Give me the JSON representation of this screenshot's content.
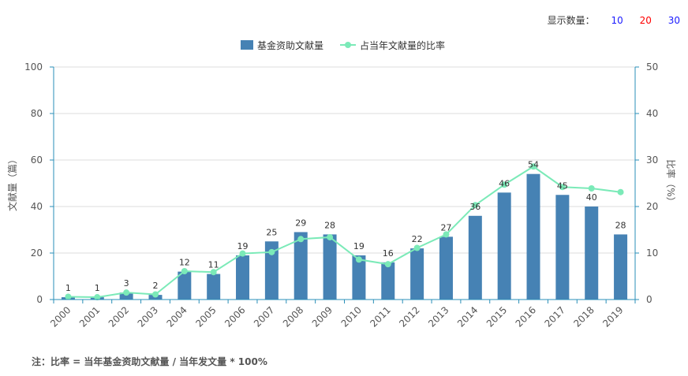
{
  "display_count": {
    "label": "显示数量：",
    "options": [
      {
        "label": "10",
        "color": "#1a1aff"
      },
      {
        "label": "20",
        "color": "#ff0000"
      },
      {
        "label": "30",
        "color": "#1a1aff"
      }
    ]
  },
  "footnote": "注：比率 = 当年基金资助文献量 / 当年发文量 * 100%",
  "colors": {
    "bar": "#4682b4",
    "line": "#7beab8",
    "axis": "#2a8fb8"
  },
  "chart_data": {
    "type": "bar",
    "categories": [
      "2000",
      "2001",
      "2002",
      "2003",
      "2004",
      "2005",
      "2006",
      "2007",
      "2008",
      "2009",
      "2010",
      "2011",
      "2012",
      "2013",
      "2014",
      "2015",
      "2016",
      "2017",
      "2018",
      "2019"
    ],
    "series": [
      {
        "name": "基金资助文献量",
        "type": "bar",
        "axis": "left",
        "values": [
          1,
          1,
          3,
          2,
          12,
          11,
          19,
          25,
          29,
          28,
          19,
          16,
          22,
          27,
          36,
          46,
          54,
          45,
          40,
          28
        ]
      },
      {
        "name": "占当年文献量的比率",
        "type": "line",
        "axis": "right",
        "values": [
          0.6,
          0.5,
          1.5,
          1.1,
          6.1,
          5.9,
          9.9,
          10.2,
          13.0,
          13.4,
          8.6,
          7.6,
          11.1,
          14.0,
          20.3,
          24.7,
          28.6,
          24.2,
          23.9,
          23.1
        ]
      }
    ],
    "ylabel": "文献量（篇）",
    "y2label": "比率（%）",
    "ylim": [
      0,
      100
    ],
    "y2lim": [
      0,
      50
    ],
    "yticks": [
      "0",
      "20",
      "40",
      "60",
      "80",
      "100"
    ],
    "y2ticks": [
      "0",
      "10",
      "20",
      "30",
      "40",
      "50"
    ],
    "grid": true,
    "legend": "top-center"
  }
}
